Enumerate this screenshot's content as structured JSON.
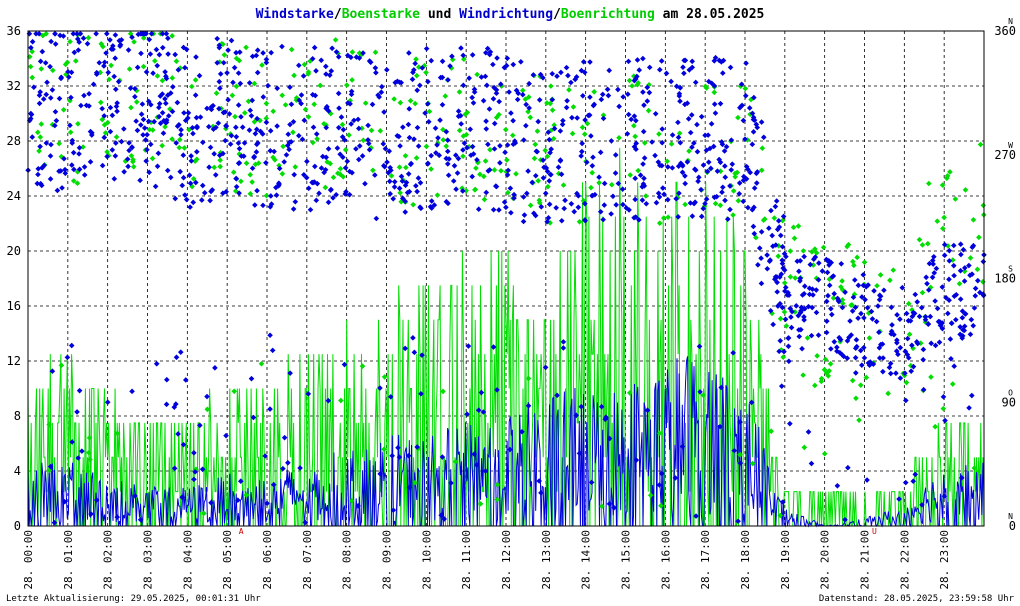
{
  "title_parts": [
    {
      "text": "Windstarke",
      "color": "#0000cc"
    },
    {
      "text": "/",
      "color": "#000000"
    },
    {
      "text": "Boenstarke",
      "color": "#00cc00"
    },
    {
      "text": " und ",
      "color": "#000000"
    },
    {
      "text": "Windrichtung",
      "color": "#0000cc"
    },
    {
      "text": "/",
      "color": "#000000"
    },
    {
      "text": "Boenrichtung",
      "color": "#00cc00"
    },
    {
      "text": " am 28.05.2025",
      "color": "#000000"
    }
  ],
  "footer_left": "Letzte Aktualisierung: 29.05.2025, 00:01:31 Uhr",
  "footer_right": "Datenstand: 28.05.2025, 23:59:58 Uhr",
  "colors": {
    "wind": "#0000dd",
    "gust": "#00dd00",
    "grid": "#000000",
    "marker": "#cc0000"
  },
  "chart_data": {
    "type": "line",
    "title": "Windstarke/Boenstarke und Windrichtung/Boenrichtung am 28.05.2025",
    "x_range_hours": [
      0,
      24
    ],
    "x_ticks": [
      {
        "date": "28.",
        "time": "00:00"
      },
      {
        "date": "28.",
        "time": "01:00"
      },
      {
        "date": "28.",
        "time": "02:00"
      },
      {
        "date": "28.",
        "time": "03:00"
      },
      {
        "date": "28.",
        "time": "04:00"
      },
      {
        "date": "28.",
        "time": "05:00"
      },
      {
        "date": "28.",
        "time": "06:00"
      },
      {
        "date": "28.",
        "time": "07:00"
      },
      {
        "date": "28.",
        "time": "08:00"
      },
      {
        "date": "28.",
        "time": "09:00"
      },
      {
        "date": "28.",
        "time": "10:00"
      },
      {
        "date": "28.",
        "time": "11:00"
      },
      {
        "date": "28.",
        "time": "12:00"
      },
      {
        "date": "28.",
        "time": "13:00"
      },
      {
        "date": "28.",
        "time": "14:00"
      },
      {
        "date": "28.",
        "time": "15:00"
      },
      {
        "date": "28.",
        "time": "16:00"
      },
      {
        "date": "28.",
        "time": "17:00"
      },
      {
        "date": "28.",
        "time": "18:00"
      },
      {
        "date": "28.",
        "time": "19:00"
      },
      {
        "date": "28.",
        "time": "20:00"
      },
      {
        "date": "28.",
        "time": "21:00"
      },
      {
        "date": "28.",
        "time": "22:00"
      },
      {
        "date": "28.",
        "time": "23:00"
      }
    ],
    "y_left": {
      "min": 0,
      "max": 36,
      "ticks": [
        0,
        4,
        8,
        12,
        16,
        20,
        24,
        28,
        32,
        36
      ]
    },
    "y_right": {
      "min": 0,
      "max": 360,
      "ticks": [
        {
          "value": 0,
          "label": "0",
          "dir": "N"
        },
        {
          "value": 90,
          "label": "90",
          "dir": "O"
        },
        {
          "value": 180,
          "label": "180",
          "dir": "S"
        },
        {
          "value": 270,
          "label": "270",
          "dir": "W"
        },
        {
          "value": 360,
          "label": "360",
          "dir": "N"
        }
      ]
    },
    "markers": [
      {
        "hour": 5.35,
        "label": "A"
      },
      {
        "hour": 21.25,
        "label": "U"
      }
    ],
    "grid": true,
    "series": [
      {
        "name": "Windstarke",
        "kind": "line",
        "color": "#0000dd",
        "hourly_level": [
          2.5,
          2.5,
          2,
          1.5,
          1.5,
          2,
          2,
          2.5,
          3,
          3.5,
          3.5,
          4,
          4.5,
          5,
          5.5,
          5.5,
          6.5,
          7,
          5.5,
          0.8,
          0,
          0.3,
          0.8,
          2.5
        ]
      },
      {
        "name": "Boenstarke",
        "kind": "line",
        "color": "#00dd00",
        "hourly_level": [
          6,
          6.5,
          5.5,
          4.5,
          4.5,
          5.5,
          6,
          7.5,
          8,
          9,
          10,
          10.5,
          11,
          11.5,
          14,
          15,
          12.5,
          15,
          11.5,
          2,
          1.5,
          1,
          2,
          5
        ]
      },
      {
        "name": "Windrichtung",
        "kind": "scatter",
        "color": "#0000dd",
        "hourly_direction_deg": [
          310,
          300,
          310,
          310,
          290,
          300,
          290,
          290,
          290,
          280,
          290,
          290,
          285,
          275,
          280,
          280,
          280,
          280,
          285,
          165,
          160,
          150,
          140,
          170
        ]
      },
      {
        "name": "Boenrichtung",
        "kind": "scatter",
        "color": "#00dd00",
        "hourly_direction_deg": [
          315,
          300,
          310,
          315,
          300,
          300,
          290,
          295,
          300,
          290,
          285,
          290,
          285,
          270,
          275,
          280,
          270,
          275,
          280,
          170,
          150,
          155,
          145,
          230
        ]
      }
    ]
  }
}
